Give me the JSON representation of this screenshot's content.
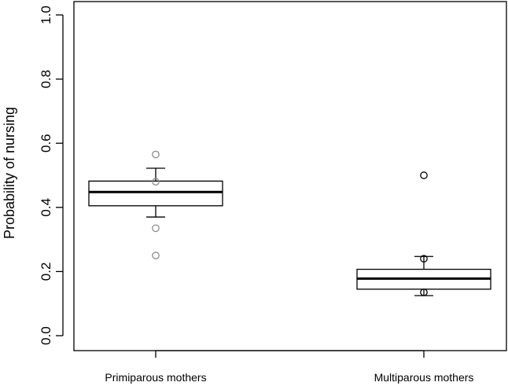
{
  "chart_data": {
    "type": "box",
    "title": "",
    "xlabel": "",
    "ylabel": "Probability of nursing",
    "ylim": [
      0,
      1
    ],
    "yticks": [
      0.0,
      0.2,
      0.4,
      0.6,
      0.8,
      1.0
    ],
    "ytick_labels": [
      "0.0",
      "0.2",
      "0.4",
      "0.6",
      "0.8",
      "1.0"
    ],
    "categories": [
      "Primiparous mothers",
      "Multiparous mothers"
    ],
    "boxes": [
      {
        "category": "Primiparous mothers",
        "whisker_low": 0.37,
        "q1": 0.405,
        "median": 0.448,
        "q3": 0.482,
        "whisker_high": 0.522,
        "points": [
          0.565,
          0.48,
          0.335,
          0.25
        ],
        "point_color": "#8c8c8c"
      },
      {
        "category": "Multiparous mothers",
        "whisker_low": 0.125,
        "q1": 0.145,
        "median": 0.178,
        "q3": 0.207,
        "whisker_high": 0.247,
        "points": [
          0.5,
          0.24,
          0.135
        ],
        "point_color": "#000000"
      }
    ],
    "grid": false,
    "legend": "none"
  }
}
